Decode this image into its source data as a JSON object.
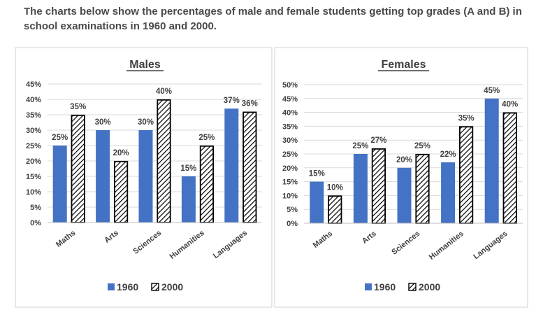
{
  "intro": "The charts below show the percentages of male and female students getting top grades (A and B) in school examinations in 1960 and 2000.",
  "chart_data": [
    {
      "type": "bar",
      "title": "Males",
      "categories": [
        "Maths",
        "Arts",
        "Sciences",
        "Humanities",
        "Languages"
      ],
      "series": [
        {
          "name": "1960",
          "values": [
            25,
            30,
            30,
            15,
            37
          ]
        },
        {
          "name": "2000",
          "values": [
            35,
            20,
            40,
            25,
            36
          ]
        }
      ],
      "ylim": [
        0,
        45
      ],
      "ytick_step": 5,
      "ytick_format": "percent",
      "grid": true,
      "legend_position": "bottom",
      "colors": {
        "1960": "#4472c4",
        "2000": "hatched-black"
      }
    },
    {
      "type": "bar",
      "title": "Females",
      "categories": [
        "Maths",
        "Arts",
        "Sciences",
        "Humanities",
        "Languages"
      ],
      "series": [
        {
          "name": "1960",
          "values": [
            15,
            25,
            20,
            22,
            45
          ]
        },
        {
          "name": "2000",
          "values": [
            10,
            27,
            25,
            35,
            40
          ]
        }
      ],
      "ylim": [
        0,
        50
      ],
      "ytick_step": 5,
      "ytick_format": "percent",
      "grid": true,
      "legend_position": "bottom",
      "colors": {
        "1960": "#4472c4",
        "2000": "hatched-black"
      }
    }
  ]
}
